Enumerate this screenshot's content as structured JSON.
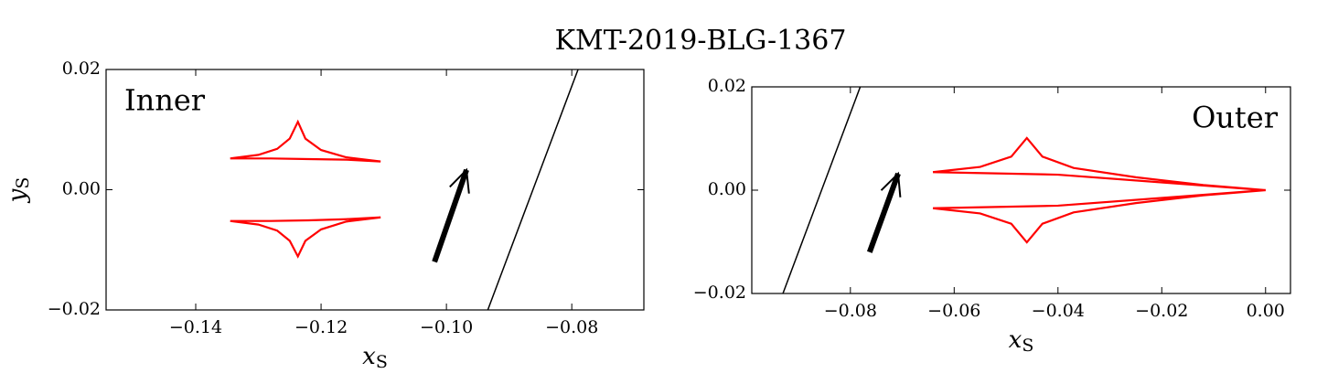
{
  "title": "KMT-2019-BLG-1367",
  "chart_data": [
    {
      "type": "line",
      "corner_text": "Inner",
      "corner_text_color": "#0000ff",
      "corner_text_position": "upper left",
      "xlabel": [
        "x",
        "S"
      ],
      "ylabel": [
        "y",
        "S"
      ],
      "xlim": [
        -0.1543,
        -0.0685
      ],
      "ylim": [
        -0.02,
        0.02
      ],
      "xticks": [
        {
          "value": -0.14,
          "label": "−0.14"
        },
        {
          "value": -0.12,
          "label": "−0.12"
        },
        {
          "value": -0.1,
          "label": "−0.10"
        },
        {
          "value": -0.08,
          "label": "−0.08"
        }
      ],
      "yticks": [
        {
          "value": -0.02,
          "label": "−0.02"
        },
        {
          "value": 0,
          "label": "0.00"
        },
        0.02
      ],
      "series": [
        {
          "color": "#ff0000",
          "x": [
            -0.1345,
            -0.13,
            -0.127,
            -0.125,
            -0.1237,
            -0.1225,
            -0.12,
            -0.116,
            -0.1105,
            -0.116,
            -0.122,
            -0.128,
            -0.1345
          ],
          "y": [
            0.0052,
            0.0058,
            0.0068,
            0.0085,
            0.0113,
            0.0085,
            0.0066,
            0.0054,
            0.0047,
            0.005,
            0.0051,
            0.0052,
            0.0052
          ]
        },
        {
          "color": "#ff0000",
          "x": [
            -0.1345,
            -0.13,
            -0.127,
            -0.125,
            -0.1237,
            -0.1225,
            -0.12,
            -0.116,
            -0.1105,
            -0.116,
            -0.122,
            -0.128,
            -0.1345
          ],
          "y": [
            -0.0052,
            -0.0058,
            -0.0068,
            -0.0085,
            -0.0111,
            -0.0085,
            -0.0066,
            -0.0053,
            -0.0046,
            -0.0049,
            -0.0051,
            -0.0052,
            -0.0052
          ]
        },
        {
          "color": "#000000",
          "x": [
            -0.0934,
            -0.079
          ],
          "y": [
            -0.02,
            0.02
          ]
        }
      ],
      "arrow": {
        "color": "#000000",
        "x": [
          -0.1019,
          -0.0968
        ],
        "y": [
          -0.012,
          0.0033
        ]
      }
    },
    {
      "type": "line",
      "corner_text": "Outer",
      "corner_text_color": "#0000ff",
      "corner_text_position": "upper right",
      "xlabel": [
        "x",
        "S"
      ],
      "xlim": [
        -0.099,
        0.0048
      ],
      "ylim": [
        -0.02,
        0.02
      ],
      "xticks": [
        {
          "value": -0.08,
          "label": "−0.08"
        },
        {
          "value": -0.06,
          "label": "−0.06"
        },
        {
          "value": -0.04,
          "label": "−0.04"
        },
        {
          "value": -0.02,
          "label": "−0.02"
        },
        {
          "value": 0,
          "label": "0.00"
        }
      ],
      "yticks": [
        {
          "value": -0.02,
          "label": "−0.02"
        },
        {
          "value": 0,
          "label": "0.00"
        },
        0.02
      ],
      "series": [
        {
          "color": "#ff0000",
          "x": [
            -0.0641,
            -0.055,
            -0.049,
            -0.046,
            -0.043,
            -0.037,
            -0.025,
            -0.012,
            0,
            -0.02,
            -0.04,
            -0.0641
          ],
          "y": [
            0.0035,
            0.0045,
            0.0065,
            0.0101,
            0.0065,
            0.0043,
            0.0025,
            0.001,
            0,
            0.0015,
            0.003,
            0.0035
          ]
        },
        {
          "color": "#ff0000",
          "x": [
            -0.0641,
            -0.055,
            -0.049,
            -0.046,
            -0.043,
            -0.037,
            -0.025,
            -0.012,
            0,
            -0.02,
            -0.04,
            -0.0641
          ],
          "y": [
            -0.0035,
            -0.0045,
            -0.0065,
            -0.0101,
            -0.0065,
            -0.0043,
            -0.0025,
            -0.001,
            0,
            -0.0015,
            -0.003,
            -0.0035
          ]
        },
        {
          "color": "#000000",
          "x": [
            -0.093,
            -0.0781
          ],
          "y": [
            -0.02,
            0.02
          ]
        }
      ],
      "arrow": {
        "color": "#000000",
        "x": [
          -0.0763,
          -0.0708
        ],
        "y": [
          -0.012,
          0.0032
        ]
      }
    }
  ]
}
